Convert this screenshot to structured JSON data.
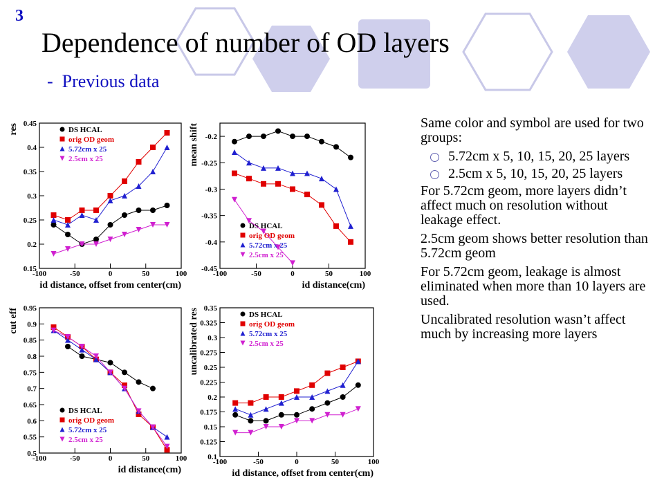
{
  "slide_number": "3",
  "title": "Dependence of number of OD layers",
  "subtitle": "-  Previous data",
  "bullets": [
    {
      "text": "Same color and symbol are used for two groups:",
      "sub": [
        "5.72cm x 5, 10, 15, 20, 25 layers",
        "2.5cm x 5, 10, 15, 20, 25 layers"
      ]
    },
    {
      "text": "For 5.72cm geom, more layers didn’t affect much on resolution without leakage effect."
    },
    {
      "text": "2.5cm geom shows better resolution than 5.72cm geom"
    },
    {
      "text": "For 5.72cm geom, leakage is almost eliminated when more than 10 layers are used."
    },
    {
      "text": "Uncalibrated resolution wasn’t affect much by increasing more layers"
    }
  ],
  "chart_data": [
    {
      "type": "line",
      "ylabel": "res",
      "xlabel": "id distance, offset from center(cm)",
      "legend": "upper left",
      "x": [
        -80,
        -60,
        -40,
        -20,
        0,
        20,
        40,
        60,
        80
      ],
      "xlim": [
        -100,
        100
      ],
      "xticks": [
        -100,
        -50,
        0,
        50,
        100
      ],
      "ylim": [
        0.15,
        0.45
      ],
      "yticks": [
        0.15,
        0.2,
        0.25,
        0.3,
        0.35,
        0.4,
        0.45
      ],
      "series": [
        {
          "name": "DS HCAL",
          "color": "#000000",
          "marker": "circle",
          "values": [
            0.24,
            0.22,
            0.2,
            0.21,
            0.24,
            0.26,
            0.27,
            0.27,
            0.28
          ]
        },
        {
          "name": "orig OD geom",
          "color": "#e00000",
          "marker": "square",
          "values": [
            0.26,
            0.25,
            0.27,
            0.27,
            0.3,
            0.33,
            0.37,
            0.4,
            0.43
          ]
        },
        {
          "name": "5.72cm x 25",
          "color": "#2020d0",
          "marker": "triangle-up",
          "values": [
            0.25,
            0.24,
            0.26,
            0.25,
            0.29,
            0.3,
            0.32,
            0.35,
            0.4
          ]
        },
        {
          "name": "2.5cm x 25",
          "color": "#d020d0",
          "marker": "triangle-down",
          "values": [
            0.18,
            0.19,
            0.2,
            0.2,
            0.21,
            0.22,
            0.23,
            0.24,
            0.24
          ]
        }
      ]
    },
    {
      "type": "line",
      "ylabel": "mean shift",
      "xlabel": "id distance(cm)",
      "legend": "lower left",
      "x": [
        -80,
        -60,
        -40,
        -20,
        0,
        20,
        40,
        60,
        80
      ],
      "xlim": [
        -100,
        100
      ],
      "xticks": [
        -100,
        -50,
        0,
        50,
        100
      ],
      "ylim": [
        -0.45,
        -0.175
      ],
      "yticks": [
        -0.45,
        -0.4,
        -0.35,
        -0.3,
        -0.25,
        -0.2
      ],
      "series": [
        {
          "name": "DS HCAL",
          "color": "#000000",
          "marker": "circle",
          "values": [
            -0.21,
            -0.2,
            -0.2,
            -0.19,
            -0.2,
            -0.2,
            -0.21,
            -0.22,
            -0.24
          ]
        },
        {
          "name": "orig OD geom",
          "color": "#e00000",
          "marker": "square",
          "values": [
            -0.27,
            -0.28,
            -0.29,
            -0.29,
            -0.3,
            -0.31,
            -0.33,
            -0.37,
            -0.4
          ]
        },
        {
          "name": "5.72cm x 25",
          "color": "#2020d0",
          "marker": "triangle-up",
          "values": [
            -0.23,
            -0.25,
            -0.26,
            -0.26,
            -0.27,
            -0.27,
            -0.28,
            -0.3,
            -0.37
          ]
        },
        {
          "name": "2.5cm x 25",
          "color": "#d020d0",
          "marker": "triangle-down",
          "values": [
            -0.32,
            -0.36,
            -0.38,
            -0.41,
            -0.44,
            null,
            null,
            null,
            null
          ]
        }
      ]
    },
    {
      "type": "line",
      "ylabel": "cut eff",
      "xlabel": "id distance(cm)",
      "legend": "lower left",
      "x": [
        -80,
        -60,
        -40,
        -20,
        0,
        20,
        40,
        60,
        80
      ],
      "xlim": [
        -100,
        100
      ],
      "xticks": [
        -100,
        -50,
        0,
        50,
        100
      ],
      "ylim": [
        0.5,
        0.95
      ],
      "yticks": [
        0.5,
        0.55,
        0.6,
        0.65,
        0.7,
        0.75,
        0.8,
        0.85,
        0.9,
        0.95
      ],
      "series": [
        {
          "name": "DS HCAL",
          "color": "#000000",
          "marker": "circle",
          "values": [
            null,
            0.83,
            0.8,
            0.79,
            0.78,
            0.75,
            0.72,
            0.7,
            null
          ]
        },
        {
          "name": "orig OD geom",
          "color": "#e00000",
          "marker": "square",
          "values": [
            0.89,
            0.86,
            0.83,
            0.79,
            0.75,
            0.71,
            0.62,
            0.58,
            0.51
          ]
        },
        {
          "name": "5.72cm x 25",
          "color": "#2020d0",
          "marker": "triangle-up",
          "values": [
            0.88,
            0.85,
            0.82,
            0.79,
            0.75,
            0.7,
            0.63,
            0.58,
            0.55
          ]
        },
        {
          "name": "2.5cm x 25",
          "color": "#d020d0",
          "marker": "triangle-down",
          "values": [
            0.88,
            0.86,
            0.83,
            0.8,
            0.75,
            0.7,
            0.63,
            0.58,
            0.52
          ]
        }
      ]
    },
    {
      "type": "line",
      "ylabel": "uncalibrated res",
      "xlabel": "id distance, offset from center(cm)",
      "legend": "upper left",
      "x": [
        -80,
        -60,
        -40,
        -20,
        0,
        20,
        40,
        60,
        80
      ],
      "xlim": [
        -100,
        100
      ],
      "xticks": [
        -100,
        -50,
        0,
        50,
        100
      ],
      "ylim": [
        0.1,
        0.35
      ],
      "yticks": [
        0.1,
        0.125,
        0.15,
        0.175,
        0.2,
        0.225,
        0.25,
        0.275,
        0.3,
        0.325,
        0.35
      ],
      "series": [
        {
          "name": "DS HCAL",
          "color": "#000000",
          "marker": "circle",
          "values": [
            0.17,
            0.16,
            0.16,
            0.17,
            0.17,
            0.18,
            0.19,
            0.2,
            0.22
          ]
        },
        {
          "name": "orig OD geom",
          "color": "#e00000",
          "marker": "square",
          "values": [
            0.19,
            0.19,
            0.2,
            0.2,
            0.21,
            0.22,
            0.24,
            0.25,
            0.26
          ]
        },
        {
          "name": "5.72cm x 25",
          "color": "#2020d0",
          "marker": "triangle-up",
          "values": [
            0.18,
            0.17,
            0.18,
            0.19,
            0.2,
            0.2,
            0.21,
            0.22,
            0.26
          ]
        },
        {
          "name": "2.5cm x 25",
          "color": "#d020d0",
          "marker": "triangle-down",
          "values": [
            0.14,
            0.14,
            0.15,
            0.15,
            0.16,
            0.16,
            0.17,
            0.17,
            0.18
          ]
        }
      ]
    }
  ]
}
